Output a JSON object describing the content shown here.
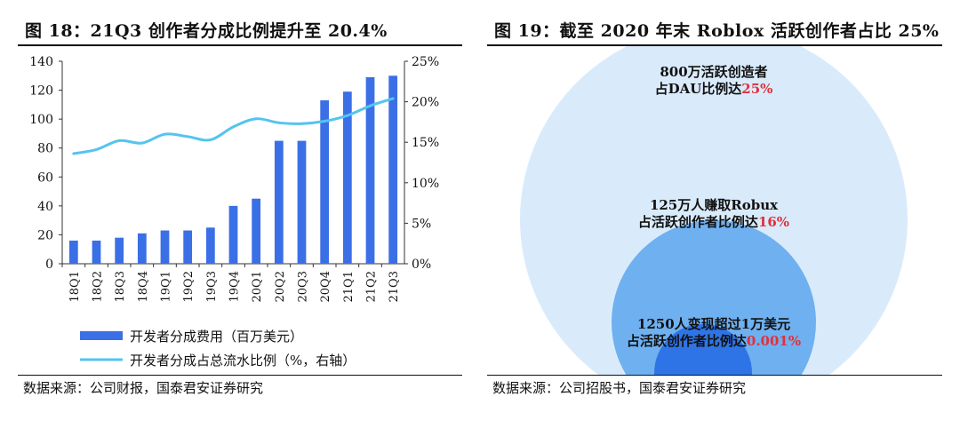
{
  "left": {
    "figure_title": "图 18：21Q3 创作者分成比例提升至 20.4%",
    "source": "数据来源：公司财报，国泰君安证券研究"
  },
  "right": {
    "figure_title": "图 19：截至 2020 年末 Roblox 活跃创作者占比 25%",
    "source": "数据来源：公司招股书，国泰君安证券研究",
    "circles": [
      {
        "line1": "800万活跃创造者",
        "line2": "占DAU比例达",
        "pct": "25%",
        "color": "#d9ebfb"
      },
      {
        "line1": "125万人赚取Robux",
        "line2": "占活跃创作者比例达",
        "pct": "16%",
        "color": "#6fb0f0"
      },
      {
        "line1": "1250人变现超过1万美元",
        "line2": "占活跃创作者比例达",
        "pct": "0.001%",
        "color": "#2f74e6"
      }
    ]
  },
  "colors": {
    "bar": "#3a6fe6",
    "line": "#54c4f0",
    "pct_red": "#e0303a"
  },
  "chart_data": {
    "type": "bar+line",
    "categories": [
      "18Q1",
      "18Q2",
      "18Q3",
      "18Q4",
      "19Q1",
      "19Q2",
      "19Q3",
      "19Q4",
      "20Q1",
      "20Q2",
      "20Q3",
      "20Q4",
      "21Q1",
      "21Q2",
      "21Q3"
    ],
    "series": [
      {
        "name": "开发者分成费用（百万美元）",
        "type": "bar",
        "axis": "left",
        "values": [
          16,
          16,
          18,
          21,
          23,
          23,
          25,
          40,
          45,
          85,
          85,
          113,
          119,
          129,
          130
        ]
      },
      {
        "name": "开发者分成占总流水比例（%，右轴）",
        "type": "line",
        "axis": "right",
        "values": [
          13.6,
          14.1,
          15.2,
          14.9,
          16.0,
          15.7,
          15.3,
          16.9,
          17.9,
          17.4,
          17.3,
          17.6,
          18.3,
          19.5,
          20.4
        ]
      }
    ],
    "y_left": {
      "min": 0,
      "max": 140,
      "ticks": [
        "0",
        "20",
        "40",
        "60",
        "80",
        "100",
        "120",
        "140"
      ]
    },
    "y_right": {
      "min": 0,
      "max": 25,
      "ticks": [
        "0%",
        "5%",
        "10%",
        "15%",
        "20%",
        "25%"
      ]
    },
    "legend": [
      "开发者分成费用（百万美元）",
      "开发者分成占总流水比例（%，右轴）"
    ]
  }
}
